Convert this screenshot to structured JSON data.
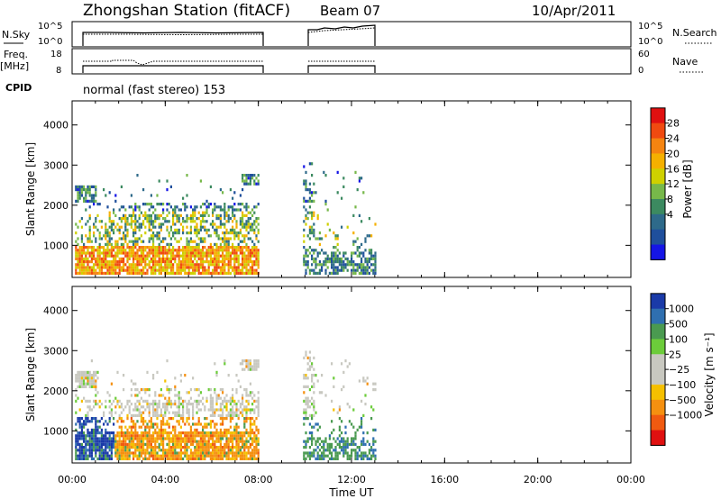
{
  "header": {
    "station": "Zhongshan Station (fitACF)",
    "beam": "Beam 07",
    "date": "10/Apr/2011"
  },
  "panels": {
    "nsky_label": "N.Sky",
    "nsearch_label": "N.Search",
    "freq_label_1": "Freq.",
    "freq_label_2": "[MHz]",
    "nave_label": "Nave",
    "cpid_label": "CPID",
    "cpid_text": "normal (fast stereo) 153",
    "nsky_ticks": [
      "10^5",
      "10^0"
    ],
    "nsearch_ticks": [
      "10^5",
      "10^0"
    ],
    "freq_ticks": [
      "18",
      "8"
    ],
    "nave_ticks": [
      "60",
      "0"
    ]
  },
  "chart_data": [
    {
      "type": "heatmap",
      "title": "",
      "xlabel": "Time UT",
      "ylabel": "Slant Range [km]",
      "x_ticks": [
        "00:00",
        "04:00",
        "08:00",
        "12:00",
        "16:00",
        "20:00",
        "00:00"
      ],
      "y_ticks": [
        "1000",
        "2000",
        "3000",
        "4000"
      ],
      "ylim": [
        200,
        4600
      ],
      "xlim_hours": [
        0,
        24
      ],
      "colorbar": {
        "label": "Power [dB]",
        "tick_labels": [
          "28",
          "24",
          "20",
          "16",
          "12",
          "8",
          "4"
        ],
        "colors": [
          "#e01010",
          "#f04a10",
          "#f58410",
          "#f5b000",
          "#cfd000",
          "#77b84a",
          "#3c8a60",
          "#2e6a8a",
          "#1f4f9c",
          "#1515e6"
        ]
      },
      "data_coverage_hours": [
        [
          0.0,
          8.0
        ],
        [
          9.9,
          13.0
        ]
      ],
      "range_extent_km": [
        300,
        3100
      ]
    },
    {
      "type": "heatmap",
      "title": "",
      "xlabel": "Time UT",
      "ylabel": "Slant Range [km]",
      "x_ticks": [
        "00:00",
        "04:00",
        "08:00",
        "12:00",
        "16:00",
        "20:00",
        "00:00"
      ],
      "y_ticks": [
        "1000",
        "2000",
        "3000",
        "4000"
      ],
      "ylim": [
        200,
        4600
      ],
      "xlim_hours": [
        0,
        24
      ],
      "colorbar": {
        "label": "Velocity [m s⁻¹]",
        "tick_labels": [
          "1000",
          "500",
          "100",
          "25",
          "−25",
          "−100",
          "−500",
          "−1000"
        ],
        "colors": [
          "#1a3aa8",
          "#2f6fb0",
          "#4a9a50",
          "#6ccc3a",
          "#c8c8c0",
          "#c8c8c0",
          "#f5c000",
          "#f59010",
          "#f05a10",
          "#e01010"
        ]
      },
      "data_coverage_hours": [
        [
          0.0,
          8.0
        ],
        [
          9.9,
          13.0
        ]
      ],
      "range_extent_km": [
        300,
        3100
      ]
    }
  ]
}
